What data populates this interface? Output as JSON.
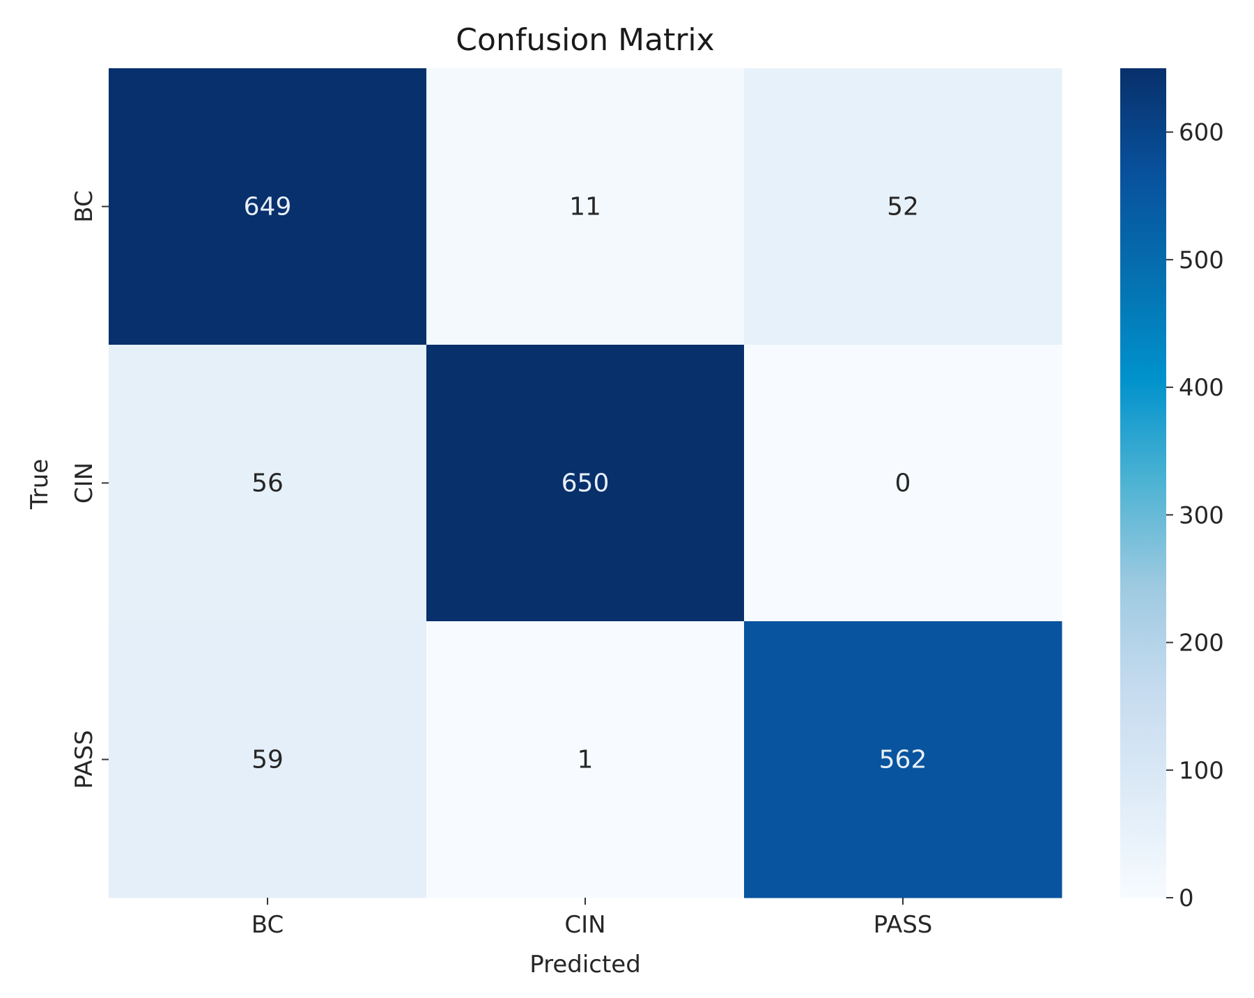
{
  "chart_data": {
    "type": "heatmap",
    "title": "Confusion Matrix",
    "xlabel": "Predicted",
    "ylabel": "True",
    "x_categories": [
      "BC",
      "CIN",
      "PASS"
    ],
    "y_categories": [
      "BC",
      "CIN",
      "PASS"
    ],
    "values": [
      [
        649,
        11,
        52
      ],
      [
        56,
        650,
        0
      ],
      [
        59,
        1,
        562
      ]
    ],
    "colormap": "Blues",
    "colorbar": {
      "range": [
        0,
        650
      ],
      "ticks": [
        0,
        100,
        200,
        300,
        400,
        500,
        600
      ],
      "tick_labels": [
        "0",
        "100",
        "200",
        "300",
        "400",
        "500",
        "600"
      ]
    },
    "colors": {
      "low": "#f7fbff",
      "high": "#08306b",
      "text_dark": "#262626",
      "text_light": "#e8f0fa"
    }
  }
}
